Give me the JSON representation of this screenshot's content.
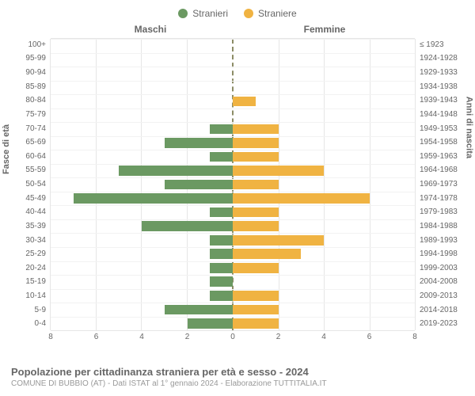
{
  "legend": {
    "male": {
      "label": "Stranieri",
      "color": "#6b9962"
    },
    "female": {
      "label": "Straniere",
      "color": "#f0b342"
    }
  },
  "column_headers": {
    "left": "Maschi",
    "right": "Femmine"
  },
  "y_axis_left_label": "Fasce di età",
  "y_axis_right_label": "Anni di nascita",
  "chart": {
    "type": "bar-pyramid",
    "background_color": "#ffffff",
    "grid_color": "#e6e6e6",
    "center_line_color": "#8c8c66",
    "bar_height_ratio": 0.72,
    "x_max": 8,
    "x_ticks": [
      0,
      2,
      4,
      6,
      8
    ],
    "age_groups": [
      "100+",
      "95-99",
      "90-94",
      "85-89",
      "80-84",
      "75-79",
      "70-74",
      "65-69",
      "60-64",
      "55-59",
      "50-54",
      "45-49",
      "40-44",
      "35-39",
      "30-34",
      "25-29",
      "20-24",
      "15-19",
      "10-14",
      "5-9",
      "0-4"
    ],
    "birth_years": [
      "≤ 1923",
      "1924-1928",
      "1929-1933",
      "1934-1938",
      "1939-1943",
      "1944-1948",
      "1949-1953",
      "1954-1958",
      "1959-1963",
      "1964-1968",
      "1969-1973",
      "1974-1978",
      "1979-1983",
      "1984-1988",
      "1989-1993",
      "1994-1998",
      "1999-2003",
      "2004-2008",
      "2009-2013",
      "2014-2018",
      "2019-2023"
    ],
    "male_values": [
      0,
      0,
      0,
      0,
      0,
      0,
      1,
      3,
      1,
      5,
      3,
      7,
      1,
      4,
      1,
      1,
      1,
      1,
      1,
      3,
      2
    ],
    "female_values": [
      0,
      0,
      0,
      0,
      1,
      0,
      2,
      2,
      2,
      4,
      2,
      6,
      2,
      2,
      4,
      3,
      2,
      0,
      2,
      2,
      2
    ]
  },
  "title": "Popolazione per cittadinanza straniera per età e sesso - 2024",
  "subtitle": "COMUNE DI BUBBIO (AT) - Dati ISTAT al 1° gennaio 2024 - Elaborazione TUTTITALIA.IT",
  "fonts": {
    "tick_size": 10,
    "legend_size": 12,
    "title_size": 13,
    "subtitle_size": 10
  }
}
